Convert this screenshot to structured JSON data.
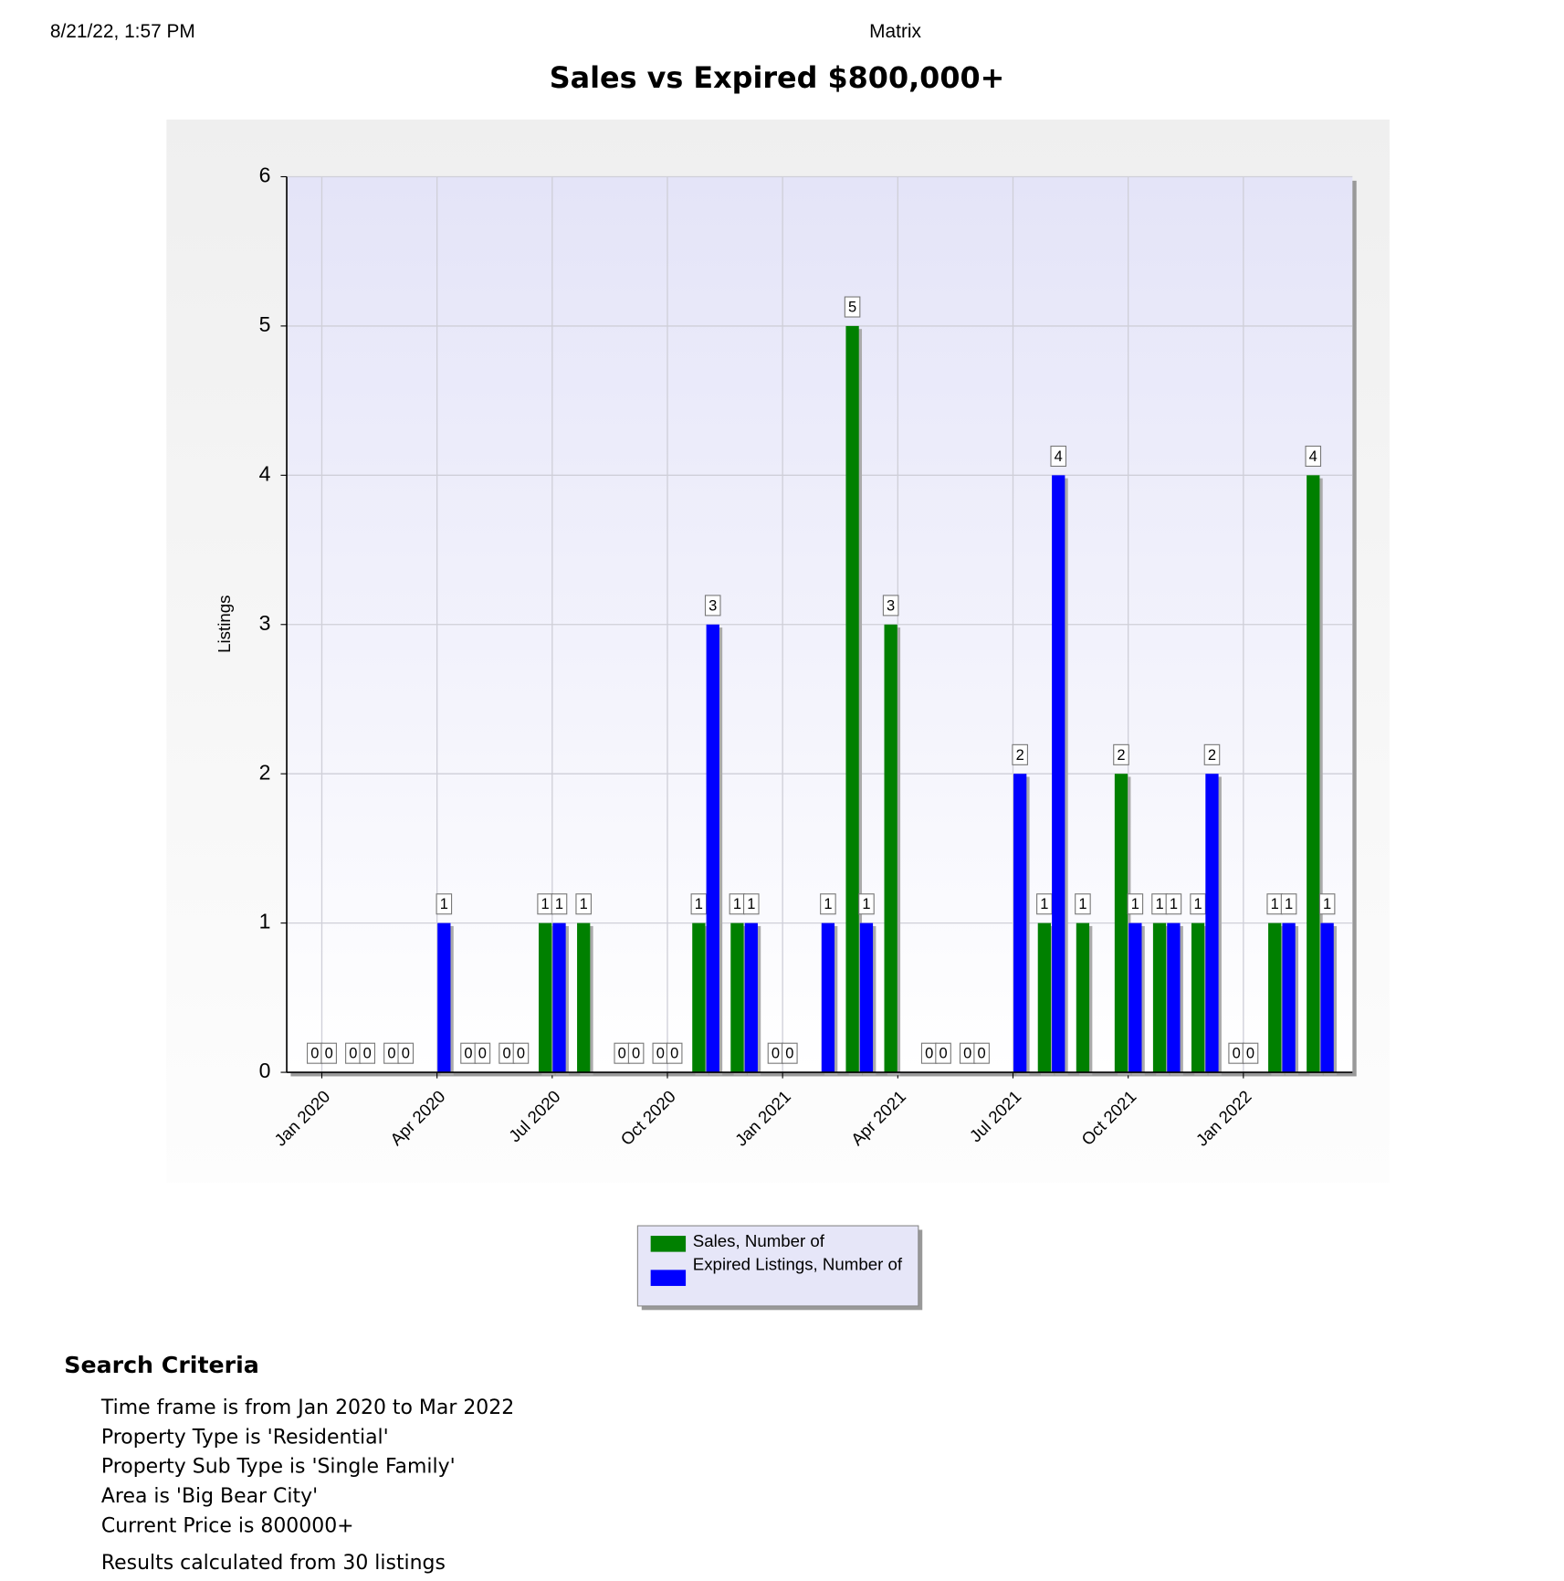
{
  "header": {
    "timestamp": "8/21/22, 1:57 PM",
    "site": "Matrix"
  },
  "chart_data": {
    "type": "bar",
    "title": "Sales vs Expired $800,000+",
    "y_label": "Listings",
    "categories": [
      "Jan 2020",
      null,
      null,
      "Apr 2020",
      null,
      null,
      "Jul 2020",
      null,
      null,
      "Oct 2020",
      null,
      null,
      "Jan 2021",
      null,
      null,
      "Apr 2021",
      null,
      null,
      "Jul 2021",
      null,
      null,
      "Oct 2021",
      null,
      null,
      "Jan 2022",
      null,
      null
    ],
    "series": [
      {
        "name": "Sales, Number of",
        "color": "#008000",
        "values": [
          0,
          0,
          0,
          0,
          0,
          0,
          1,
          1,
          0,
          0,
          1,
          1,
          0,
          0,
          5,
          3,
          0,
          0,
          0,
          1,
          1,
          2,
          1,
          1,
          0,
          1,
          4
        ]
      },
      {
        "name": "Expired Listings, Number of",
        "color": "#0000ff",
        "values": [
          0,
          0,
          0,
          1,
          0,
          0,
          1,
          0,
          0,
          0,
          3,
          1,
          0,
          1,
          1,
          0,
          0,
          0,
          2,
          4,
          0,
          1,
          1,
          2,
          0,
          1,
          1
        ]
      }
    ],
    "ylim": [
      0,
      6
    ],
    "yticks": [
      0,
      1,
      2,
      3,
      4,
      5,
      6
    ],
    "grid": true,
    "legend": "bottom"
  },
  "search_criteria": {
    "title": "Search Criteria",
    "lines": [
      "Time frame is from Jan 2020 to Mar 2022",
      "Property Type is 'Residential'",
      "Property Sub Type is 'Single Family'",
      "Area is 'Big Bear City'",
      "Current Price is 800000+"
    ],
    "results": "Results calculated from 30 listings"
  }
}
